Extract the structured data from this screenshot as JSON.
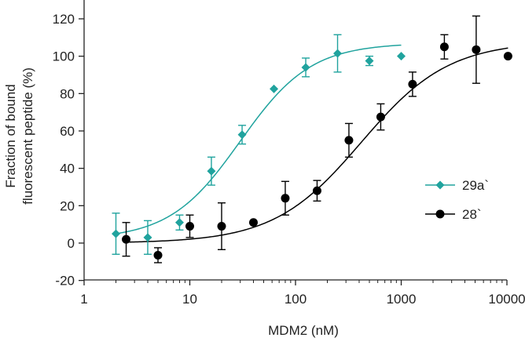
{
  "chart_data": {
    "type": "scatter",
    "xlabel": "MDM2 (nM)",
    "ylabel": [
      "Fraction of bound",
      "fluorescent peptide (%)"
    ],
    "xscale": "log",
    "xlim": [
      1,
      10000
    ],
    "ylim": [
      -20,
      130
    ],
    "xticks": [
      1,
      10,
      100,
      1000,
      10000
    ],
    "xtick_labels": [
      "1",
      "10",
      "100",
      "1000",
      "10000"
    ],
    "yticks": [
      -20,
      0,
      20,
      40,
      60,
      80,
      100,
      120
    ],
    "ytick_labels": [
      "-20",
      "0",
      "20",
      "40",
      "60",
      "80",
      "100",
      "120"
    ],
    "grid": false,
    "legend_position": "right",
    "series": [
      {
        "name": "29a`",
        "color": "#20a39e",
        "marker": "diamond",
        "x": [
          2,
          4,
          8,
          16,
          31.25,
          62.5,
          125,
          250,
          500,
          1000
        ],
        "y": [
          5,
          3,
          11,
          38.5,
          58,
          82.5,
          94,
          101.5,
          97.5,
          100
        ],
        "err": [
          11,
          9,
          4,
          7.5,
          5,
          0,
          5,
          10,
          2.5,
          0
        ],
        "fit": {
          "bottom": 2,
          "top": 107,
          "ec50": 30,
          "hill": 1.3,
          "x_range": [
            2,
            1000
          ]
        }
      },
      {
        "name": "28`",
        "color": "#000000",
        "marker": "circle",
        "x": [
          2.5,
          5,
          10,
          20,
          40,
          80,
          160,
          320,
          640,
          1280,
          2560,
          5120,
          10240
        ],
        "y": [
          2,
          -6.5,
          9,
          9,
          11,
          24,
          28,
          55,
          67.5,
          85,
          105,
          103.5,
          100
        ],
        "err": [
          9,
          4,
          6,
          12.5,
          0,
          9,
          5.5,
          9,
          7,
          6.5,
          6.5,
          18,
          0
        ],
        "fit": {
          "bottom": 0,
          "top": 108,
          "ec50": 420,
          "hill": 1.05,
          "x_range": [
            2.5,
            10240
          ]
        }
      }
    ]
  }
}
